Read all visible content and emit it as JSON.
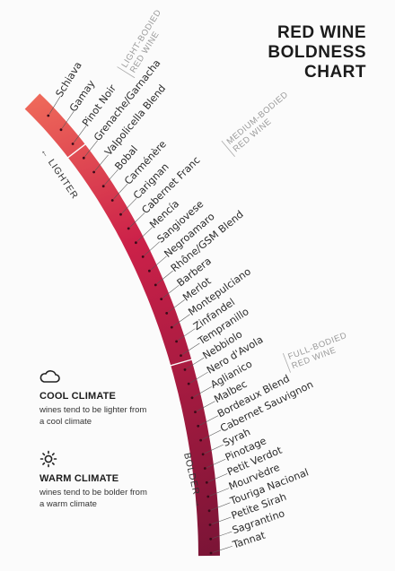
{
  "title": [
    "RED WINE",
    "BOLDNESS",
    "CHART"
  ],
  "axis": {
    "lighter": "← LIGHTER",
    "bolder": "BOLDER →"
  },
  "categories": [
    {
      "key": "light",
      "line1": "LIGHT-BODIED",
      "line2": "RED WINE"
    },
    {
      "key": "medium",
      "line1": "MEDIUM-BODIED",
      "line2": "RED WINE"
    },
    {
      "key": "full",
      "line1": "FULL-BODIED",
      "line2": "RED WINE"
    }
  ],
  "wines": [
    "Schiava",
    "Gamay",
    "Pinot Noir",
    "Grenache/Garnacha",
    "Valpolicella Blend",
    "Bobal",
    "Carménère",
    "Carignan",
    "Cabernet Franc",
    "Mencía",
    "Sangiovese",
    "Negroamaro",
    "Rhône/GSM Blend",
    "Barbera",
    "Merlot",
    "Montepulciano",
    "Zinfandel",
    "Tempranillo",
    "Nebbiolo",
    "Nero d'Avola",
    "Aglianico",
    "Malbec",
    "Bordeaux Blend",
    "Cabernet Sauvignon",
    "Syrah",
    "Pinotage",
    "Petit Verdot",
    "Mourvèdre",
    "Touriga Nacional",
    "Petite Sirah",
    "Sagrantino",
    "Tannat"
  ],
  "colors": {
    "light": "#ef6a5a",
    "mid": "#cc2149",
    "dark": "#7a1436",
    "text": "#2a2a2a",
    "muted": "#9a9a9a"
  },
  "legend": {
    "cool": {
      "icon": "cloud-icon",
      "title": "COOL CLIMATE",
      "text": "wines tend to be lighter from a cool climate"
    },
    "warm": {
      "icon": "sun-icon",
      "title": "WARM CLIMATE",
      "text": "wines tend to be bolder from a warm climate"
    }
  }
}
